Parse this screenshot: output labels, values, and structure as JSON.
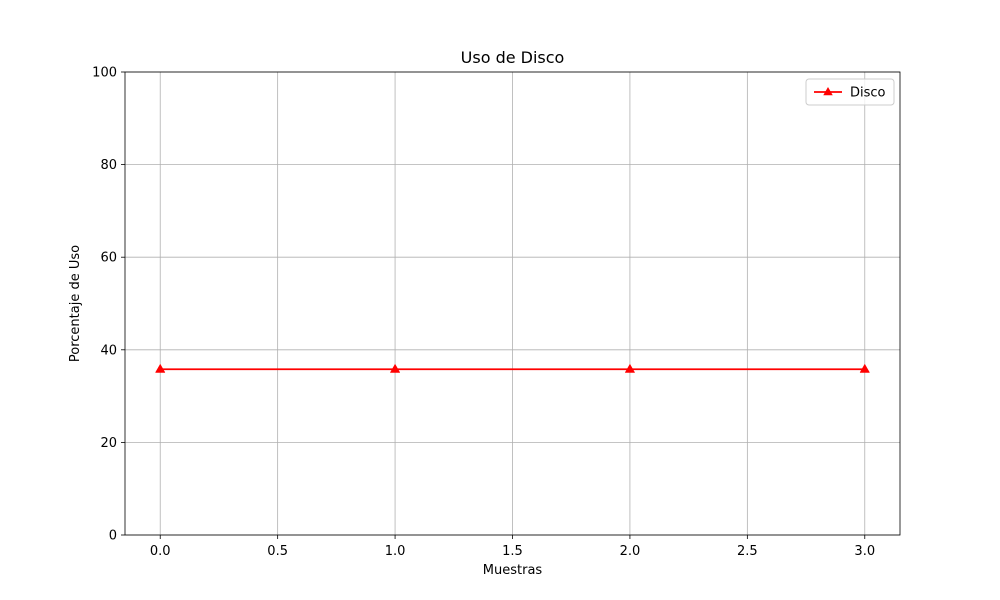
{
  "chart_data": {
    "type": "line",
    "title": "Uso de Disco",
    "xlabel": "Muestras",
    "ylabel": "Porcentaje de Uso",
    "xlim": [
      -0.15,
      3.15
    ],
    "ylim": [
      0,
      100
    ],
    "xticks": [
      0.0,
      0.5,
      1.0,
      1.5,
      2.0,
      2.5,
      3.0
    ],
    "xtick_labels": [
      "0.0",
      "0.5",
      "1.0",
      "1.5",
      "2.0",
      "2.5",
      "3.0"
    ],
    "yticks": [
      0,
      20,
      40,
      60,
      80,
      100
    ],
    "ytick_labels": [
      "0",
      "20",
      "40",
      "60",
      "80",
      "100"
    ],
    "grid": true,
    "legend_position": "top-right",
    "series": [
      {
        "name": "Disco",
        "color": "#ff0000",
        "marker": "triangle-up",
        "x": [
          0,
          1,
          2,
          3
        ],
        "y": [
          35.8,
          35.8,
          35.8,
          35.8
        ]
      }
    ]
  }
}
